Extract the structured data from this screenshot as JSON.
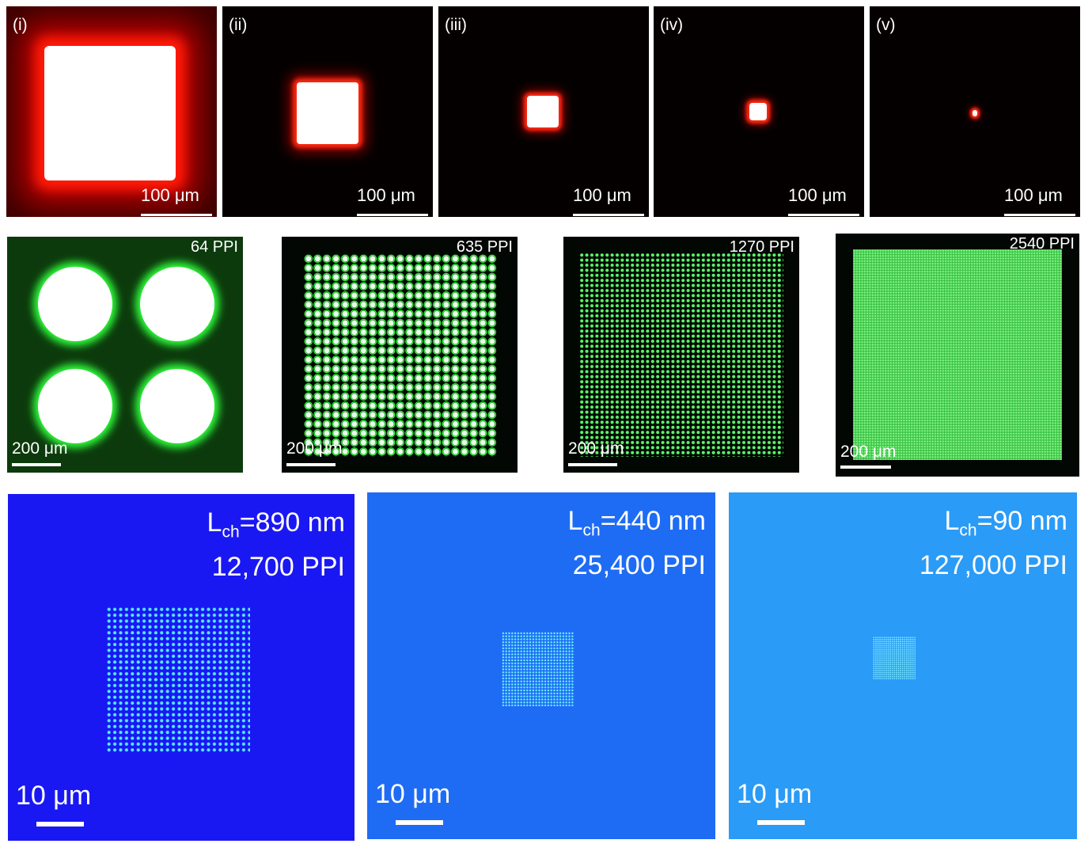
{
  "row1": {
    "panels": [
      {
        "roman": "(i)",
        "scale": "100 μm"
      },
      {
        "roman": "(ii)",
        "scale": "100 μm"
      },
      {
        "roman": "(iii)",
        "scale": "100 μm"
      },
      {
        "roman": "(iv)",
        "scale": "100 μm"
      },
      {
        "roman": "(v)",
        "scale": "100 μm"
      }
    ],
    "colors": {
      "background": "#050000",
      "emission": "#ff2a10",
      "core": "#ffffff"
    }
  },
  "row2": {
    "panels": [
      {
        "ppi": "64 PPI",
        "scale": "200 μm"
      },
      {
        "ppi": "635 PPI",
        "scale": "200 μm"
      },
      {
        "ppi": "1270 PPI",
        "scale": "200 μm"
      },
      {
        "ppi": "2540 PPI",
        "scale": "200 μm"
      }
    ],
    "colors": {
      "background": "#030703",
      "emission": "#33ff55"
    }
  },
  "row3": {
    "panels": [
      {
        "lch_prefix": "L",
        "lch_sub": "ch",
        "lch_value": "=890 nm",
        "ppi": "12,700 PPI",
        "scale": "10 μm"
      },
      {
        "lch_prefix": "L",
        "lch_sub": "ch",
        "lch_value": "=440 nm",
        "ppi": "25,400 PPI",
        "scale": "10 μm"
      },
      {
        "lch_prefix": "L",
        "lch_sub": "ch",
        "lch_value": "=90 nm",
        "ppi": "127,000 PPI",
        "scale": "10 μm"
      }
    ],
    "colors": {
      "panel1": "#1a1aff",
      "panel2": "#1f6df5",
      "panel3": "#2a9cf7",
      "dots": "#40e0ff"
    }
  }
}
